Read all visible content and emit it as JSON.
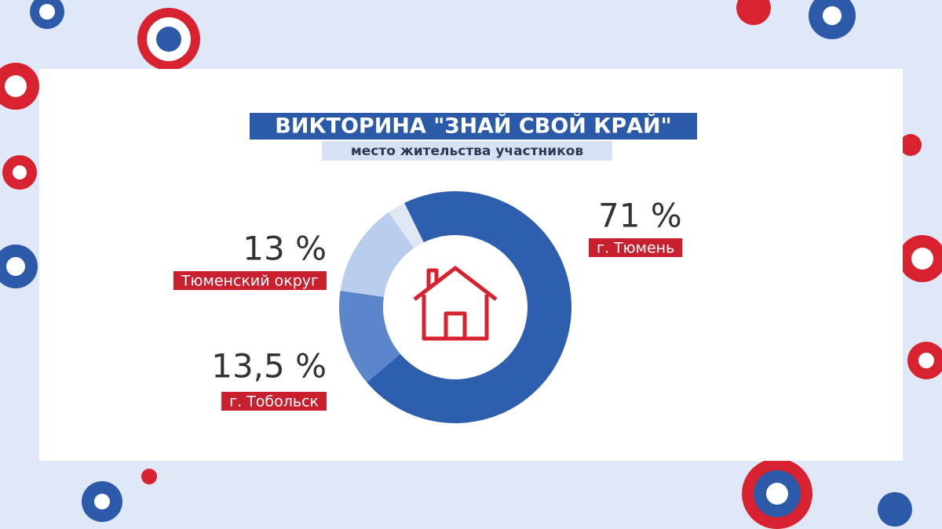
{
  "chart_data": {
    "type": "donut",
    "title": "ВИКТОРИНА \"ЗНАЙ СВОЙ КРАЙ\"",
    "subtitle": "место жительства участников",
    "categories": [
      "г. Тюмень",
      "г. Тобольск",
      "Тюменский округ",
      null
    ],
    "values": [
      71,
      13.5,
      13,
      2.5
    ],
    "value_labels": [
      "71 %",
      "13,5 %",
      "13 %",
      null
    ],
    "colors": [
      "#2e5fae",
      "#5b86cc",
      "#b9cdec",
      "#dfe7f3"
    ],
    "label_color": "#c8202f"
  }
}
